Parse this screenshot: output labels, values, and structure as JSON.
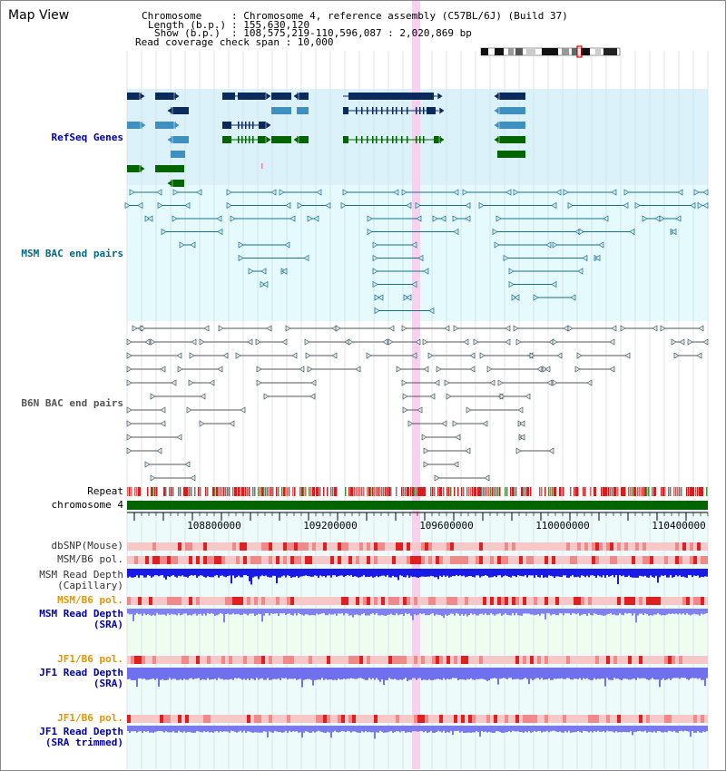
{
  "page": {
    "title": "Map View"
  },
  "info": {
    "chromosome_label": "Chromosome",
    "chromosome_value": ": Chromosome 4, reference assembly (C57BL/6J) (Build 37)",
    "length_label": "Length (b.p.)",
    "length_value": ": 155,630,120",
    "show_label": "Show (b.p.)",
    "show_value": ": 108,575,219-110,596,087 : 2,020,869 bp",
    "read_coverage": "Read coverage check span : 10,000"
  },
  "tracks": {
    "refseq": "RefSeq Genes",
    "msm_bac": "MSM BAC end pairs",
    "b6n_bac": "B6N BAC end pairs",
    "repeat": "Repeat",
    "chromosome": "chromosome 4",
    "dbsnp": "dbSNP(Mouse)",
    "msm_b6_pol_1": "MSM/B6 pol.",
    "msm_read_depth_cap_1": "MSM Read Depth",
    "msm_read_depth_cap_2": "(Capillary)",
    "msm_b6_pol_2": "MSM/B6 pol.",
    "msm_read_depth_sra_1": "MSM Read Depth",
    "msm_read_depth_sra_2": "(SRA)",
    "jf1_b6_pol_1": "JF1/B6 pol.",
    "jf1_read_depth_sra_1": "JF1 Read Depth",
    "jf1_read_depth_sra_2": "(SRA)",
    "jf1_b6_pol_2": "JF1/B6 pol.",
    "jf1_read_depth_trim_1": "JF1 Read Depth",
    "jf1_read_depth_trim_2": "(SRA trimmed)"
  },
  "axis": {
    "ticks": [
      "108800000",
      "109200000",
      "109600000",
      "110000000",
      "110400000"
    ]
  },
  "colors": {
    "refseq_label": "#0000aa",
    "msm_label": "#006a8a",
    "b6n_label": "#555555",
    "gray_label": "#333333",
    "orange_label": "#e69500",
    "blue_label": "#0000aa",
    "refseq_bg": "#dcf2fb",
    "msm_bg": "#e4fafc",
    "gene_dark": "#0a2a5e",
    "gene_mid": "#3f8fbf",
    "gene_green": "#006400",
    "bac_msm": "#1a6f8a",
    "bac_b6n": "#555555",
    "chromosome": "#006400",
    "highlight": "#f7d2ef"
  }
}
